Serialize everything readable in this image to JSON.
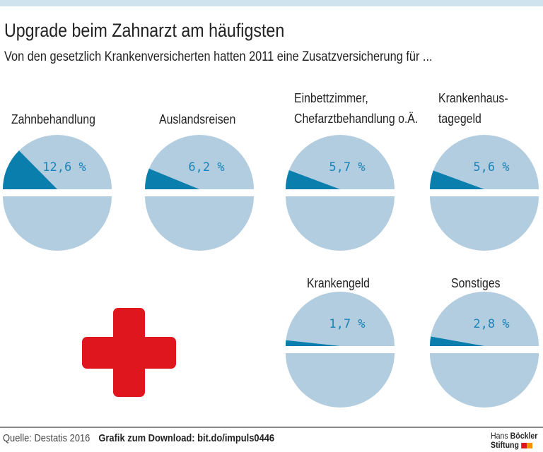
{
  "title": "Upgrade beim Zahnarzt am häufigsten",
  "subtitle": "Von den gesetzlich Krankenversicherten hatten 2011 eine Zusatzversicherung für ...",
  "colors": {
    "slice": "#0a7fae",
    "rest": "#b3cde0",
    "label": "#1a84b8",
    "cross": "#e0161f"
  },
  "chart_data": {
    "type": "pie",
    "unit": "%",
    "items": [
      {
        "label_lines": [
          "Zahnbehandlung"
        ],
        "value": 12.6,
        "value_label": "12,6 %"
      },
      {
        "label_lines": [
          "Auslandsreisen"
        ],
        "value": 6.2,
        "value_label": "6,2 %"
      },
      {
        "label_lines": [
          "Einbettzimmer,",
          "Chefarztbehandlung o.Ä."
        ],
        "value": 5.7,
        "value_label": "5,7 %"
      },
      {
        "label_lines": [
          "Krankenhaus-",
          "tagegeld"
        ],
        "value": 5.6,
        "value_label": "5,6 %"
      },
      {
        "label_lines": [
          "Krankengeld"
        ],
        "value": 1.7,
        "value_label": "1,7 %"
      },
      {
        "label_lines": [
          "Sonstiges"
        ],
        "value": 2.8,
        "value_label": "2,8 %"
      }
    ]
  },
  "footer": {
    "source": "Quelle: Destatis 2016",
    "download": "Grafik zum Download: bit.do/impuls0446",
    "logo_line1_a": "Hans",
    "logo_line1_b": "Böckler",
    "logo_line2": "Stiftung"
  }
}
